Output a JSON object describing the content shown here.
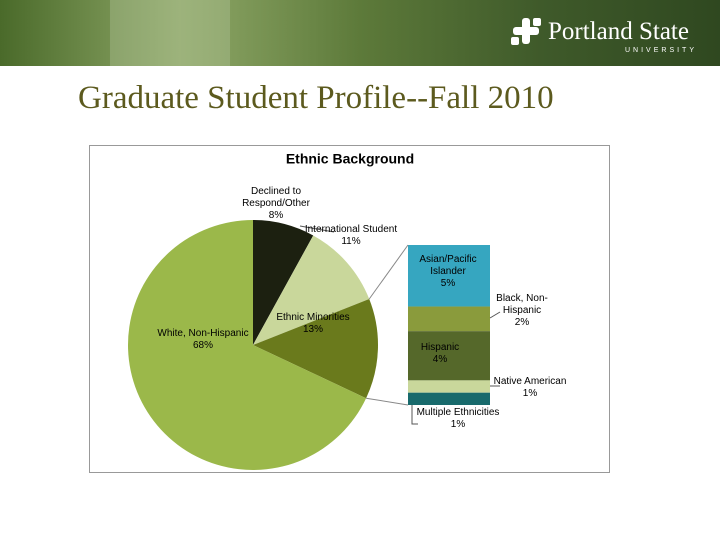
{
  "header": {
    "logo": "Portland State",
    "logo_sub": "UNIVERSITY"
  },
  "slide_title": "Graduate Student Profile--Fall 2010",
  "chart_data": {
    "type": "pie-of-bar",
    "title": "Ethnic Background",
    "categories": [
      "Declined to Respond/Other",
      "International Student",
      "Ethnic Minorities",
      "White, Non-Hispanic"
    ],
    "values": [
      8,
      11,
      13,
      68
    ],
    "value_labels": [
      "8%",
      "11%",
      "13%",
      "68%"
    ],
    "colors": [
      "#1c2010",
      "#c9d79b",
      "#6a7a1c",
      "#9bb84a"
    ],
    "breakdown": {
      "categories": [
        "Asian/Pacific Islander",
        "Black, Non-Hispanic",
        "Hispanic",
        "Native American",
        "Multiple Ethnicities"
      ],
      "values": [
        5,
        2,
        4,
        1,
        1
      ],
      "value_labels": [
        "5%",
        "2%",
        "4%",
        "1%",
        "1%"
      ],
      "colors": [
        "#36a6c0",
        "#8a9b3c",
        "#55682a",
        "#c9d79b",
        "#186a6c"
      ]
    }
  }
}
